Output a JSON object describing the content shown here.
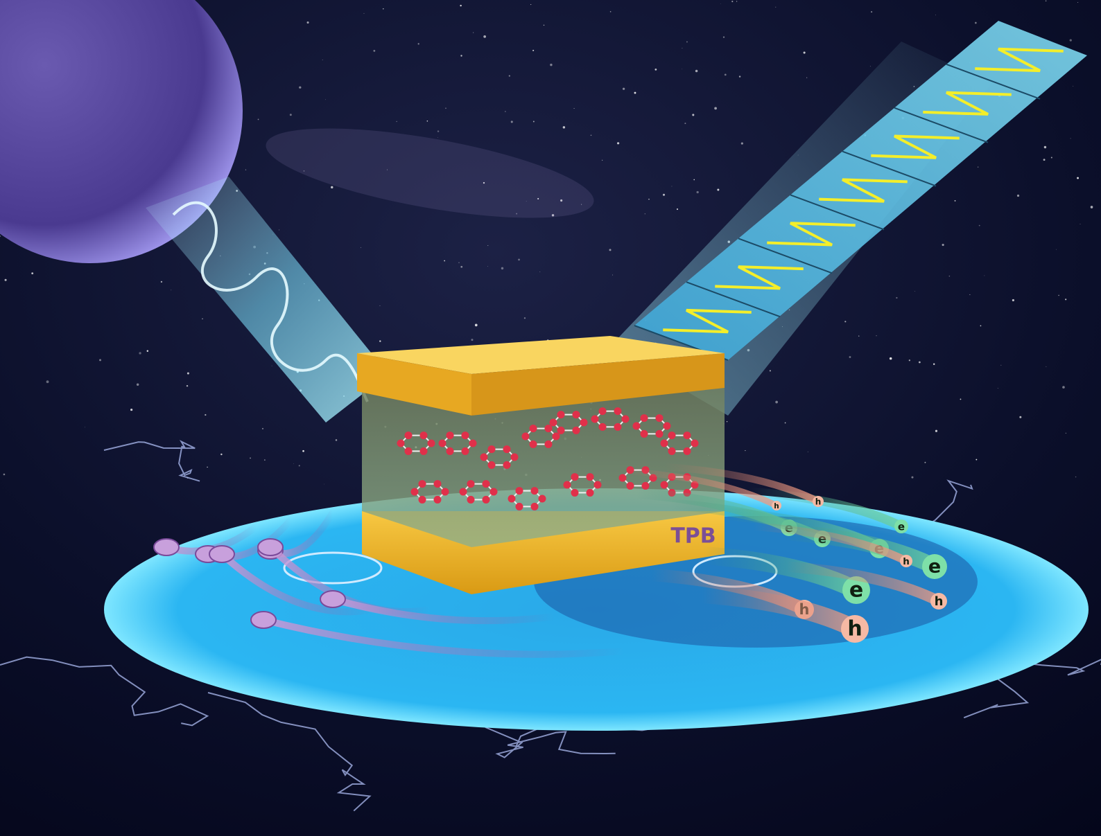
{
  "device": {
    "label": "TPB"
  },
  "carriers": {
    "electrons": [
      "e",
      "e",
      "e",
      "e",
      "e",
      "e"
    ],
    "holes": [
      "h",
      "h",
      "h",
      "h",
      "h",
      "h"
    ]
  }
}
